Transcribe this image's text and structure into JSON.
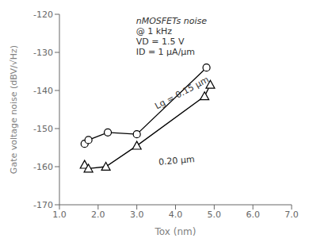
{
  "chart_data": {
    "type": "line",
    "xlabel": "Tox (nm)",
    "ylabel": "Gate voltage noise (dBV/√Hz)",
    "xlim": [
      1.0,
      7.0
    ],
    "ylim": [
      -170,
      -120
    ],
    "xticks": [
      {
        "value": 1.0,
        "label": "1.0"
      },
      {
        "value": 2.0,
        "label": "2.0"
      },
      {
        "value": 3.0,
        "label": "3.0"
      },
      {
        "value": 4.0,
        "label": "4.0"
      },
      {
        "value": 5.0,
        "label": "5.0"
      },
      {
        "value": 6.0,
        "label": "6.0"
      },
      {
        "value": 7.0,
        "label": "7.0"
      }
    ],
    "yticks": [
      -170,
      -160,
      -150,
      -140,
      -130,
      -120
    ],
    "grid": false,
    "series": [
      {
        "color": "#000000",
        "marker": "circle",
        "line_style": "solid",
        "x": [
          1.65,
          1.75,
          2.25,
          3.0,
          4.8
        ],
        "values": [
          -154.0,
          -153.0,
          -151.0,
          -151.5,
          -134.0
        ]
      },
      {
        "color": "#000000",
        "marker": "triangle",
        "line_style": "solid",
        "x": [
          1.65,
          1.75,
          2.2,
          3.0,
          4.75,
          4.9
        ],
        "values": [
          -159.5,
          -160.5,
          -160.0,
          -154.5,
          -141.5,
          -138.5
        ]
      }
    ],
    "annotations": [
      {
        "text": "nMOSFETs noise"
      },
      {
        "text": "@ 1 kHz"
      },
      {
        "text": "VD = 1.5 V"
      },
      {
        "text": "ID = 1 μA/μm"
      },
      {
        "text": "Lg = 0.15 μm",
        "x": 3.55,
        "y": -145.5
      },
      {
        "text": "0.20 μm",
        "x": 3.55,
        "y": -157.5
      }
    ]
  }
}
